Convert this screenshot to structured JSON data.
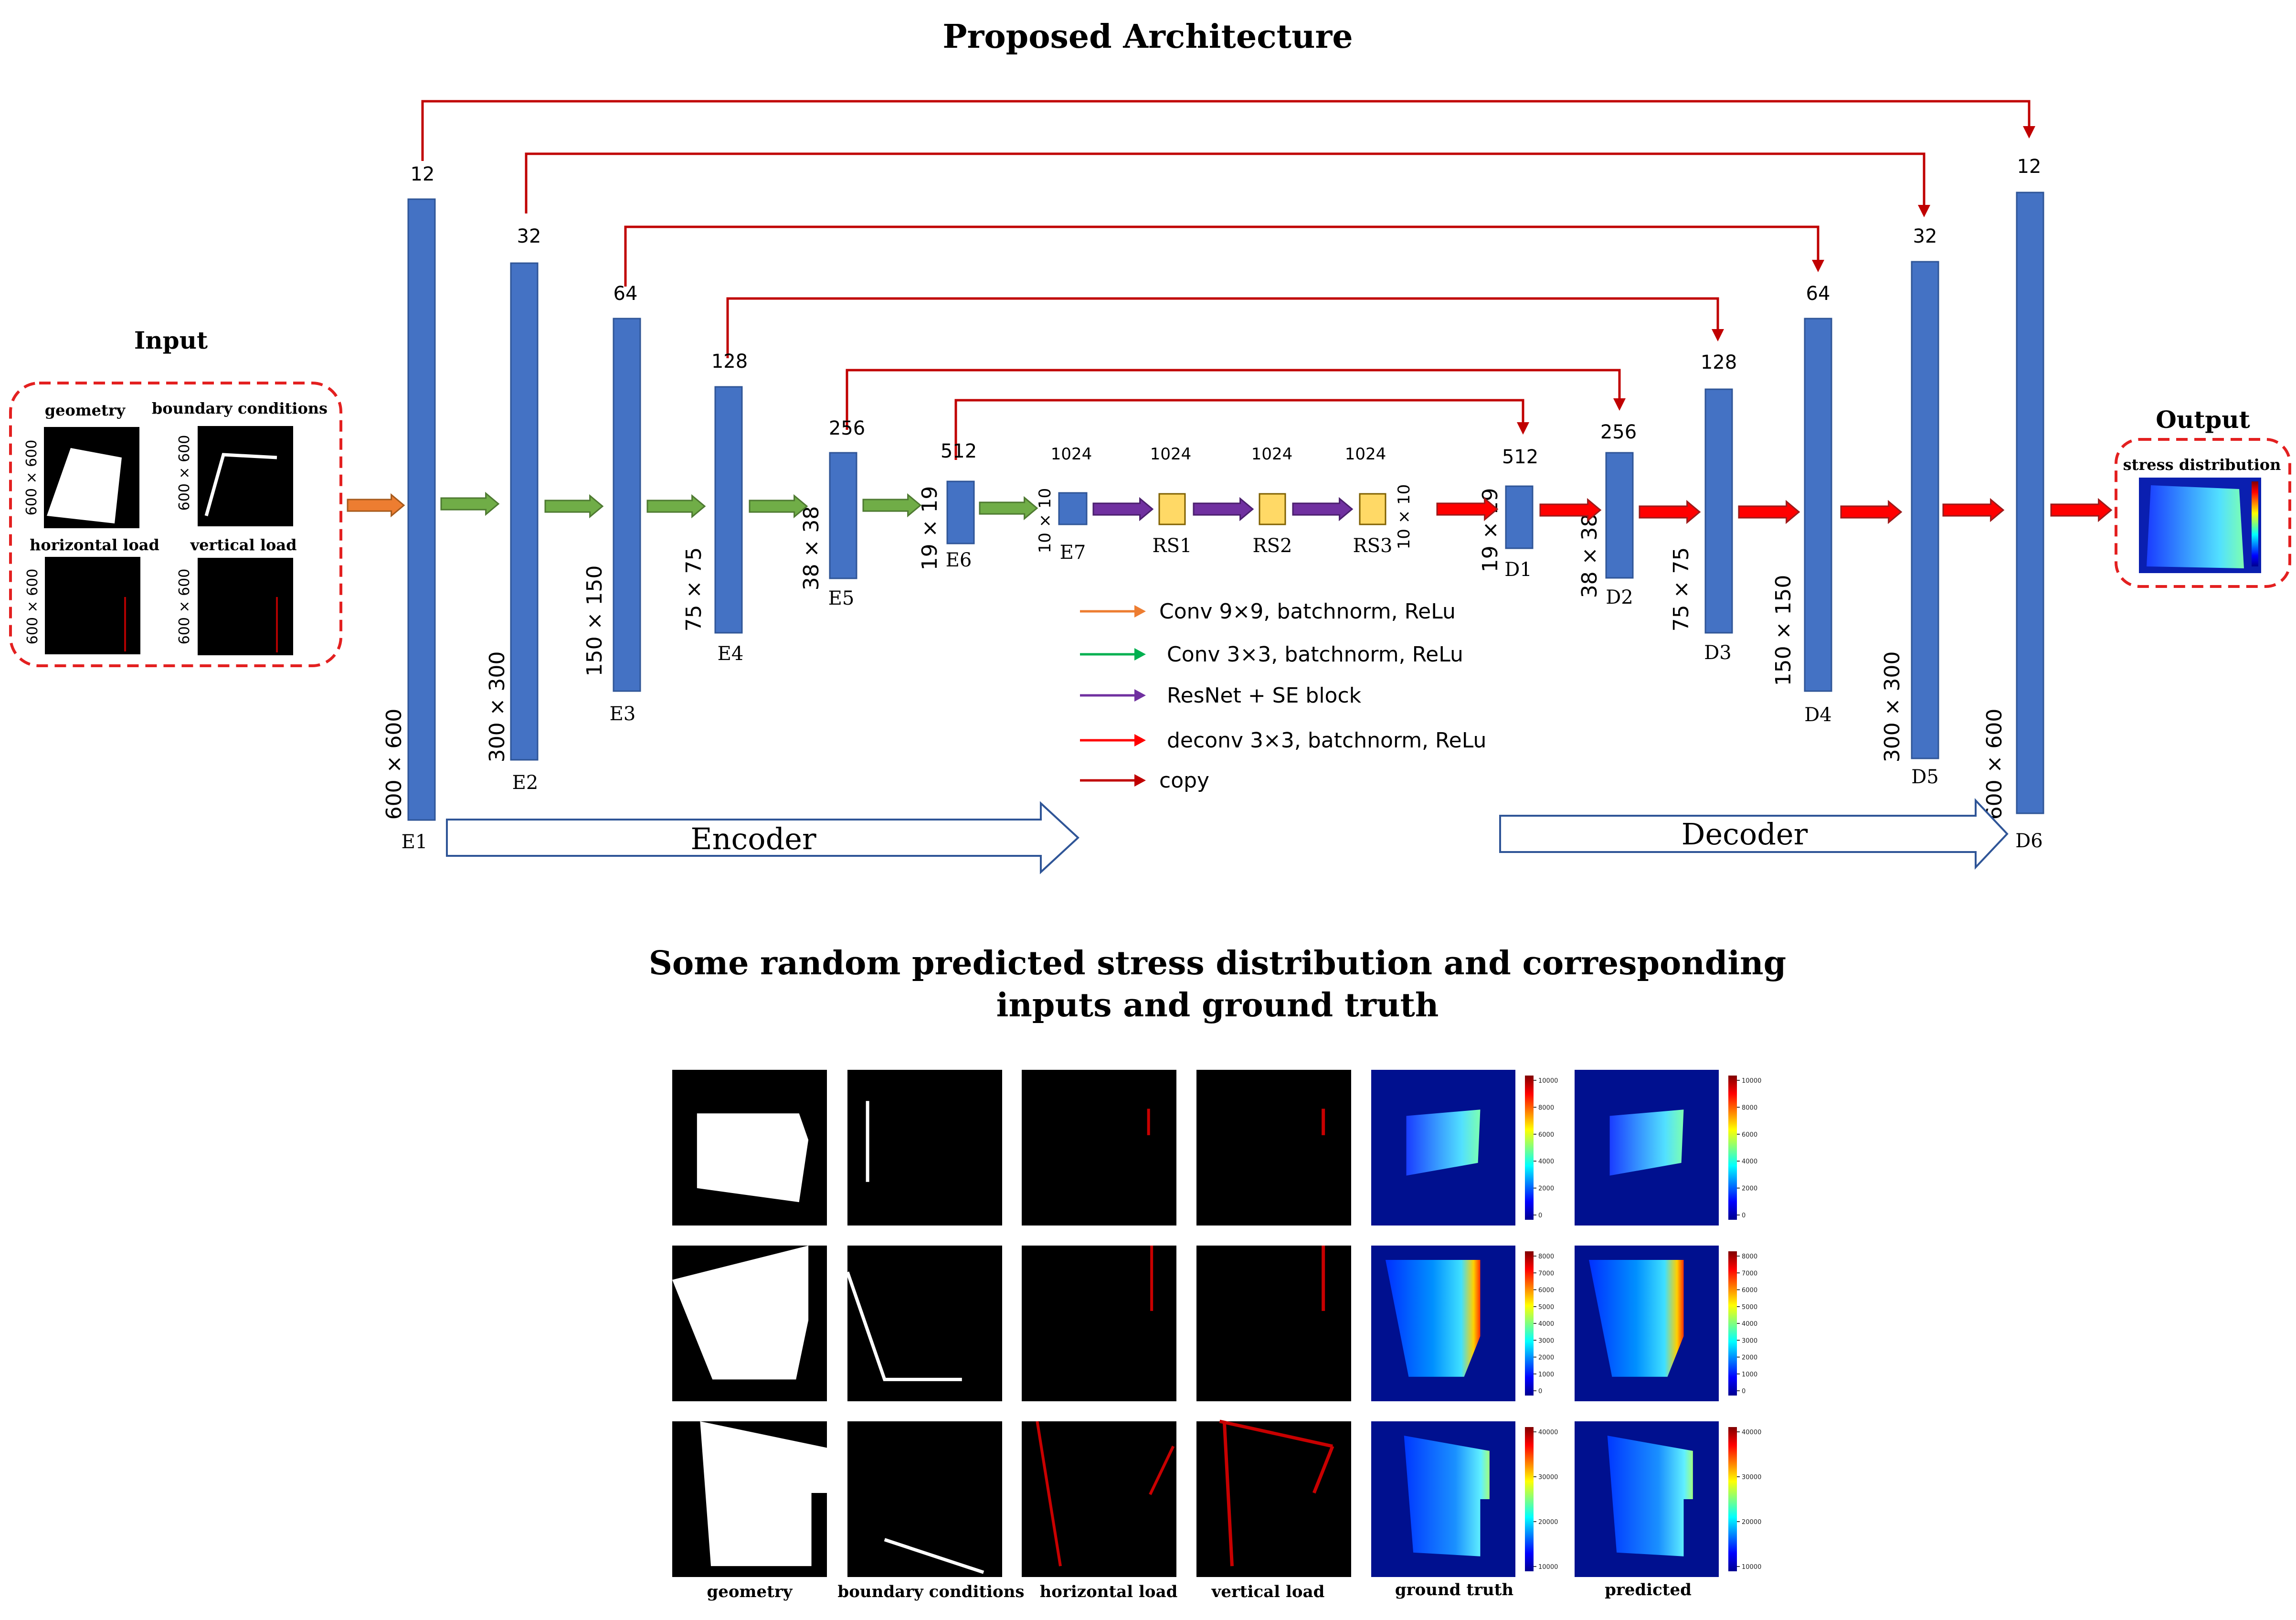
{
  "titles": {
    "architecture": "Proposed Architecture",
    "results_line1": "Some random predicted stress distribution and corresponding",
    "results_line2": "inputs and ground truth"
  },
  "input_panel": {
    "title": "Input",
    "items": [
      {
        "label": "geometry",
        "size": "600 × 600"
      },
      {
        "label": "boundary conditions",
        "size": "600 × 600"
      },
      {
        "label": "horizontal load",
        "size": "600 × 600"
      },
      {
        "label": "vertical load",
        "size": "600 × 600"
      }
    ]
  },
  "output_panel": {
    "title": "Output",
    "label": "stress distribution"
  },
  "blocks": [
    {
      "id": "E1",
      "channels": "12",
      "size": "600 × 600"
    },
    {
      "id": "E2",
      "channels": "32",
      "size": "300 × 300"
    },
    {
      "id": "E3",
      "channels": "64",
      "size": "150 × 150"
    },
    {
      "id": "E4",
      "channels": "128",
      "size": "75 × 75"
    },
    {
      "id": "E5",
      "channels": "256",
      "size": "38 × 38"
    },
    {
      "id": "E6",
      "channels": "512",
      "size": "19 × 19"
    },
    {
      "id": "E7",
      "channels": "1024",
      "size": "10 × 10"
    },
    {
      "id": "RS1",
      "channels": "1024",
      "size": ""
    },
    {
      "id": "RS2",
      "channels": "1024",
      "size": ""
    },
    {
      "id": "RS3",
      "channels": "1024",
      "size": "10 × 10"
    },
    {
      "id": "D1",
      "channels": "512",
      "size": "19 × 19"
    },
    {
      "id": "D2",
      "channels": "256",
      "size": "38 × 38"
    },
    {
      "id": "D3",
      "channels": "128",
      "size": "75 × 75"
    },
    {
      "id": "D4",
      "channels": "64",
      "size": "150 × 150"
    },
    {
      "id": "D5",
      "channels": "32",
      "size": "300 × 300"
    },
    {
      "id": "D6",
      "channels": "12",
      "size": "600 × 600"
    }
  ],
  "legend": [
    {
      "color": "#ED7D31",
      "label": "Conv 9×9, batchnorm, ReLu"
    },
    {
      "color": "#00B050",
      "label": "Conv 3×3, batchnorm, ReLu"
    },
    {
      "color": "#7030A0",
      "label": "ResNet + SE block"
    },
    {
      "color": "#FF0000",
      "label": "deconv 3×3, batchnorm, ReLu"
    },
    {
      "color": "#C00000",
      "label": "copy"
    }
  ],
  "stage_arrows": {
    "encoder": "Encoder",
    "decoder": "Decoder"
  },
  "results": {
    "columns": [
      "geometry",
      "boundary conditions",
      "horizontal load",
      "vertical load",
      "ground truth",
      "predicted"
    ],
    "colorbars": [
      {
        "ticks": [
          "10000",
          "8000",
          "6000",
          "4000",
          "2000",
          "0"
        ]
      },
      {
        "ticks": [
          "8000",
          "7000",
          "6000",
          "5000",
          "4000",
          "3000",
          "2000",
          "1000",
          "0"
        ]
      },
      {
        "ticks": [
          "40000",
          "30000",
          "20000",
          "10000"
        ]
      }
    ]
  },
  "colors": {
    "block_blue": "#4472C4",
    "block_yellow": "#FFD966",
    "copy_red": "#C00000",
    "panel_dash": "#E32020"
  }
}
